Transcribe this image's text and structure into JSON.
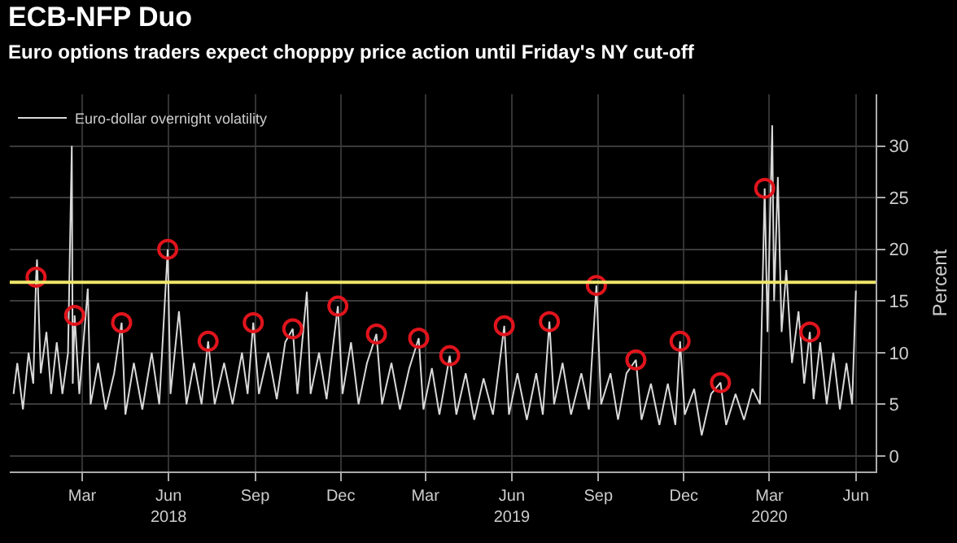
{
  "chart_data": {
    "type": "line",
    "title": "ECB-NFP Duo",
    "subtitle": "Euro options traders expect chopppy price action until Friday's NY cut-off",
    "ylabel": "Percent",
    "xlim": [
      "2017-12-14",
      "2020-06-22"
    ],
    "xticks": [
      {
        "value": "2018-03-01",
        "label": "Mar"
      },
      {
        "value": "2018-06-01",
        "label": "Jun\n2018"
      },
      {
        "value": "2018-09-01",
        "label": "Sep"
      },
      {
        "value": "2018-12-01",
        "label": "Dec"
      },
      {
        "value": "2019-03-01",
        "label": "Mar"
      },
      {
        "value": "2019-06-01",
        "label": "Jun\n2019"
      },
      {
        "value": "2019-09-01",
        "label": "Sep"
      },
      {
        "value": "2019-12-01",
        "label": "Dec"
      },
      {
        "value": "2020-03-01",
        "label": "Mar\n2020"
      },
      {
        "value": "2020-06-01",
        "label": "Jun"
      }
    ],
    "ylim": [
      -1.5,
      35
    ],
    "yticks": [
      0,
      5,
      10,
      15,
      20,
      25,
      30
    ],
    "grid": true,
    "legend": "top left",
    "ref_lines": [
      {
        "axis": "y",
        "value": 16.8,
        "color": "#f0e66a"
      }
    ],
    "series": [
      {
        "name": "Euro-dollar overnight volatility",
        "color": "#d9d9d9",
        "x": [
          "2017-12-18",
          "2017-12-22",
          "2017-12-28",
          "2018-01-03",
          "2018-01-08",
          "2018-01-11",
          "2018-01-12",
          "2018-01-16",
          "2018-01-22",
          "2018-01-27",
          "2018-02-02",
          "2018-02-08",
          "2018-02-14",
          "2018-02-18",
          "2018-02-19",
          "2018-02-21",
          "2018-02-26",
          "2018-03-07",
          "2018-03-10",
          "2018-03-18",
          "2018-03-26",
          "2018-04-04",
          "2018-04-12",
          "2018-04-16",
          "2018-04-25",
          "2018-05-04",
          "2018-05-14",
          "2018-05-22",
          "2018-05-31",
          "2018-06-03",
          "2018-06-12",
          "2018-06-20",
          "2018-06-28",
          "2018-07-06",
          "2018-07-13",
          "2018-07-20",
          "2018-07-30",
          "2018-08-08",
          "2018-08-18",
          "2018-08-24",
          "2018-08-30",
          "2018-09-05",
          "2018-09-15",
          "2018-09-24",
          "2018-10-03",
          "2018-10-11",
          "2018-10-16",
          "2018-10-26",
          "2018-10-30",
          "2018-11-08",
          "2018-11-16",
          "2018-11-28",
          "2018-12-03",
          "2018-12-12",
          "2018-12-20",
          "2018-12-29",
          "2019-01-08",
          "2019-01-14",
          "2019-01-24",
          "2019-02-02",
          "2019-02-12",
          "2019-02-22",
          "2019-02-27",
          "2019-03-08",
          "2019-03-16",
          "2019-03-27",
          "2019-04-03",
          "2019-04-13",
          "2019-04-22",
          "2019-05-02",
          "2019-05-12",
          "2019-05-24",
          "2019-05-29",
          "2019-06-07",
          "2019-06-17",
          "2019-06-27",
          "2019-07-04",
          "2019-07-11",
          "2019-07-16",
          "2019-07-25",
          "2019-08-03",
          "2019-08-14",
          "2019-08-22",
          "2019-08-30",
          "2019-09-04",
          "2019-09-14",
          "2019-09-22",
          "2019-10-01",
          "2019-10-11",
          "2019-10-17",
          "2019-10-27",
          "2019-11-05",
          "2019-11-14",
          "2019-11-22",
          "2019-11-27",
          "2019-12-02",
          "2019-12-12",
          "2019-12-20",
          "2019-12-30",
          "2020-01-09",
          "2020-01-15",
          "2020-01-25",
          "2020-02-03",
          "2020-02-12",
          "2020-02-20",
          "2020-02-25",
          "2020-02-28",
          "2020-03-04",
          "2020-03-06",
          "2020-03-10",
          "2020-03-14",
          "2020-03-19",
          "2020-03-25",
          "2020-04-01",
          "2020-04-07",
          "2020-04-13",
          "2020-04-17",
          "2020-04-24",
          "2020-05-01",
          "2020-05-08",
          "2020-05-15",
          "2020-05-22",
          "2020-05-28",
          "2020-06-01"
        ],
        "values": [
          6,
          9,
          4.5,
          10,
          7,
          17.3,
          19,
          8,
          12,
          6,
          11,
          6,
          10,
          30,
          7,
          13.6,
          6,
          16.2,
          5,
          9,
          4.5,
          8,
          12.9,
          4,
          9,
          4.5,
          10,
          5,
          20,
          6,
          14,
          5,
          9,
          5,
          11.1,
          5,
          9,
          5,
          10,
          6,
          12.9,
          6,
          10,
          5.5,
          11,
          12.3,
          6,
          15.9,
          6,
          10,
          5.5,
          14.5,
          6,
          11,
          5,
          9,
          11.8,
          5,
          9,
          4.5,
          8.5,
          11.4,
          4.5,
          8.5,
          4,
          9.7,
          4,
          8,
          3.5,
          7.5,
          4,
          12.6,
          4,
          8,
          3.5,
          8,
          4,
          13,
          5,
          9,
          4,
          8,
          4.5,
          16.5,
          5,
          8,
          3.5,
          8,
          9.3,
          3.5,
          7,
          3,
          7,
          3,
          11.1,
          4,
          6.5,
          2,
          6,
          7.1,
          3,
          6,
          3.5,
          6.5,
          5,
          25.9,
          12,
          32,
          15,
          27,
          12,
          18,
          9,
          14,
          7,
          12,
          5.5,
          11,
          5,
          10,
          4.5,
          9,
          5,
          16
        ]
      },
      {
        "type": "scatter",
        "marker": "circle",
        "color": "#e0141c",
        "x": [
          "2018-01-11",
          "2018-02-21",
          "2018-04-12",
          "2018-05-31",
          "2018-07-13",
          "2018-08-30",
          "2018-10-11",
          "2018-11-28",
          "2019-01-08",
          "2019-02-22",
          "2019-03-27",
          "2019-05-24",
          "2019-07-11",
          "2019-08-30",
          "2019-10-11",
          "2019-11-27",
          "2020-01-09",
          "2020-02-25",
          "2020-04-13"
        ],
        "values": [
          17.3,
          13.6,
          12.9,
          20,
          11.1,
          12.9,
          12.3,
          14.5,
          11.8,
          11.4,
          9.7,
          12.6,
          13,
          16.5,
          9.3,
          11.1,
          7.1,
          25.9,
          12
        ]
      }
    ]
  }
}
